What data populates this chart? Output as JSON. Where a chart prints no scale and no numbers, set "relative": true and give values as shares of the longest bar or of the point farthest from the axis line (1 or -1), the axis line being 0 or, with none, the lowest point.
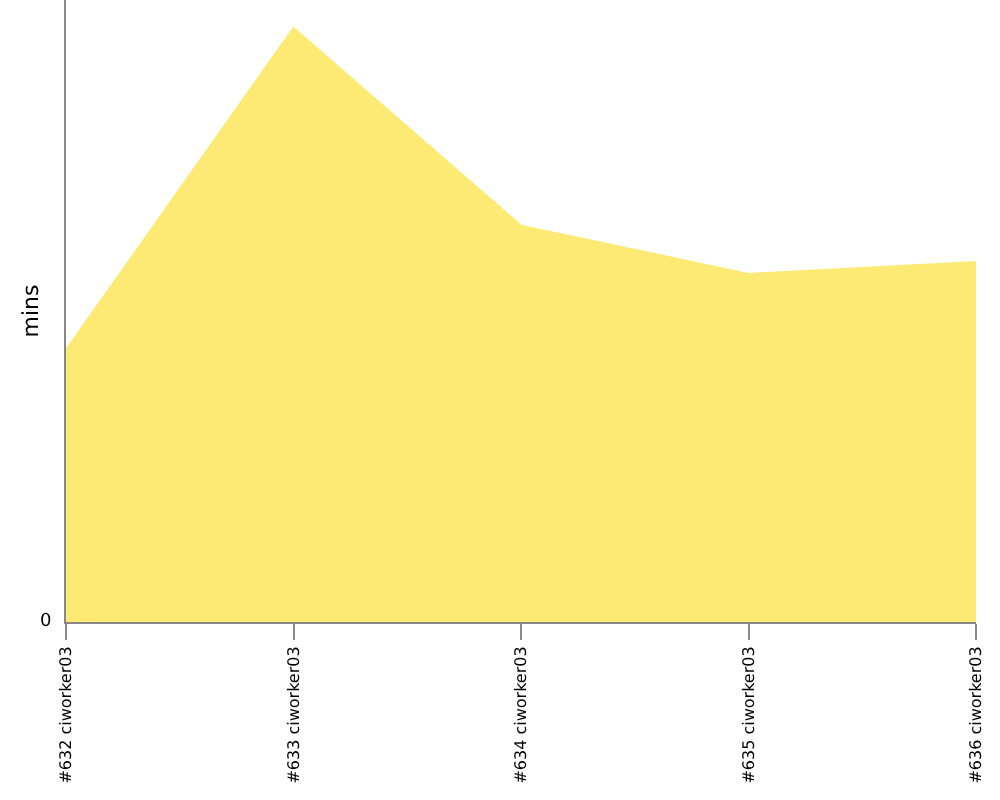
{
  "chart_data": {
    "type": "area",
    "ylabel": "mins",
    "relative": true,
    "annotations": [
      "0"
    ],
    "categories": [
      "#632 ciworker03",
      "#633 ciworker03",
      "#634 ciworker03",
      "#635 ciworker03",
      "#636 ciworker03"
    ],
    "series": [
      {
        "color": "#fcea74",
        "values": [
          0.458,
          1,
          0.667,
          0.586,
          0.606
        ]
      }
    ]
  }
}
